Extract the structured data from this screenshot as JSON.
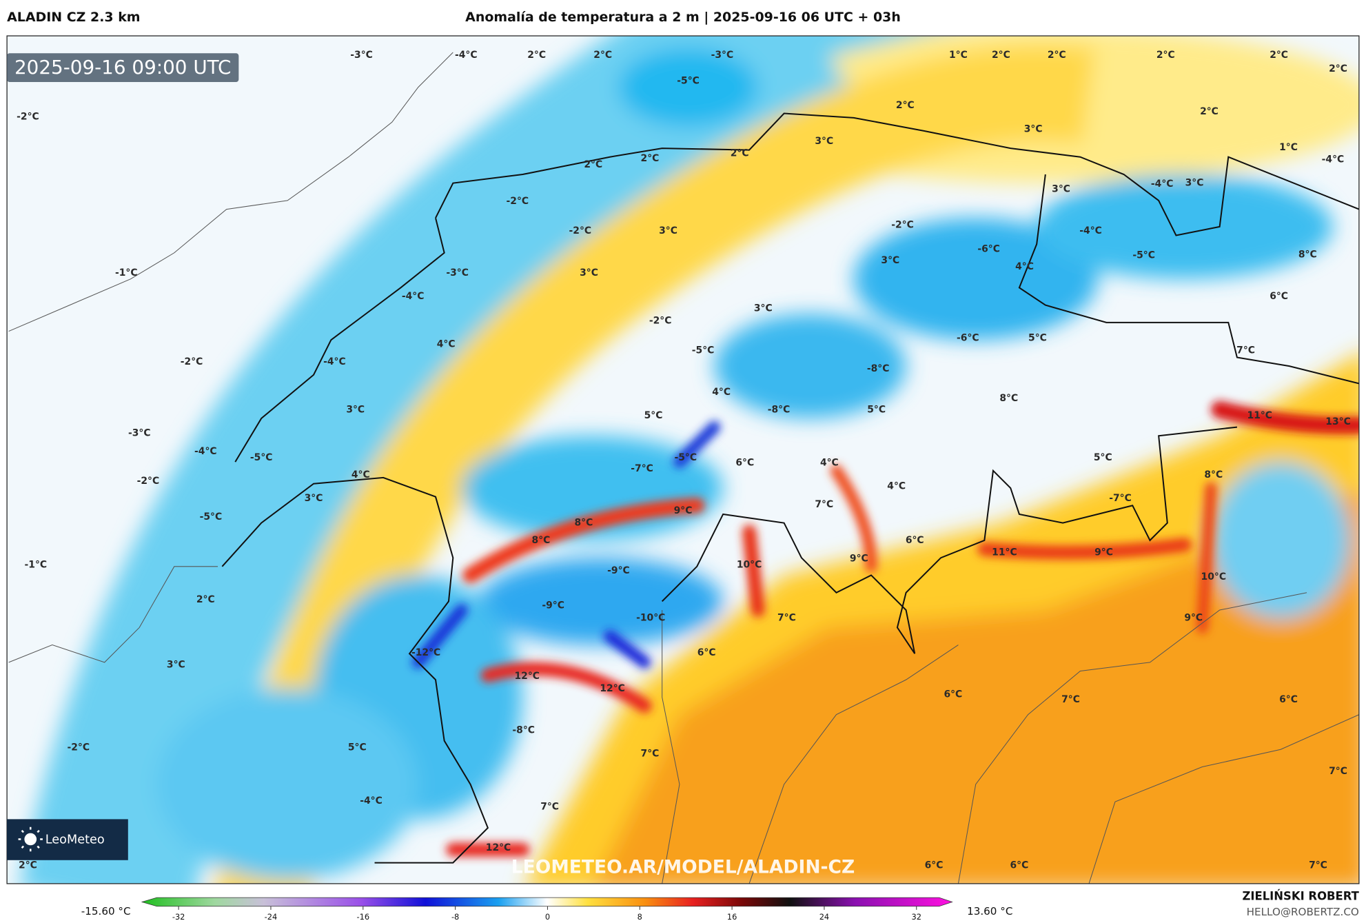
{
  "header": {
    "model": "ALADIN CZ 2.3 km",
    "title": "Anomalía de temperatura a 2 m | 2025-09-16 06 UTC + 03h"
  },
  "map": {
    "timestamp": "2025-09-16 09:00 UTC",
    "watermark": "LEOMETEO.AR/MODEL/ALADIN-CZ",
    "contour_labels": [
      "-3°C",
      "-4°C",
      "2°C",
      "2°C",
      "-3°C",
      "1°C",
      "2°C",
      "2°C",
      "2°C",
      "2°C",
      "2°C",
      "-5°C",
      "-2°C",
      "2°C",
      "2°C",
      "3°C",
      "3°C",
      "1°C",
      "-4°C",
      "2°C",
      "2°C",
      "2°C",
      "3°C",
      "-4°C",
      "3°C",
      "-2°C",
      "-2°C",
      "3°C",
      "-2°C",
      "-4°C",
      "-6°C",
      "-5°C",
      "8°C",
      "-1°C",
      "-3°C",
      "3°C",
      "3°C",
      "4°C",
      "-4°C",
      "6°C",
      "3°C",
      "-2°C",
      "-6°C",
      "5°C",
      "4°C",
      "-4°C",
      "-2°C",
      "-5°C",
      "7°C",
      "-8°C",
      "3°C",
      "4°C",
      "-8°C",
      "5°C",
      "8°C",
      "11°C",
      "13°C",
      "5°C",
      "-3°C",
      "-4°C",
      "-5°C",
      "-5°C",
      "6°C",
      "4°C",
      "5°C",
      "-7°C",
      "4°C",
      "8°C",
      "-2°C",
      "4°C",
      "3°C",
      "-7°C",
      "7°C",
      "9°C",
      "-5°C",
      "8°C",
      "8°C",
      "6°C",
      "11°C",
      "9°C",
      "9°C",
      "-1°C",
      "-9°C",
      "10°C",
      "10°C",
      "2°C",
      "-9°C",
      "-10°C",
      "7°C",
      "9°C",
      "-12°C",
      "6°C",
      "3°C",
      "12°C",
      "12°C",
      "6°C",
      "7°C",
      "6°C",
      "-8°C",
      "-2°C",
      "5°C",
      "7°C",
      "7°C",
      "-4°C",
      "7°C",
      "12°C",
      "2°C",
      "6°C",
      "6°C",
      "7°C"
    ]
  },
  "logo": {
    "text": "LeoMeteo"
  },
  "colorbar": {
    "min_label": "-15.60 °C",
    "max_label": "13.60 °C",
    "range": [
      -32,
      32
    ],
    "ticks": [
      -32,
      -24,
      -16,
      -8,
      0,
      8,
      16,
      24,
      32
    ]
  },
  "footer": {
    "author": "ZIELIŃSKI ROBERT",
    "email": "HELLO@ROBERTZ.CO"
  }
}
